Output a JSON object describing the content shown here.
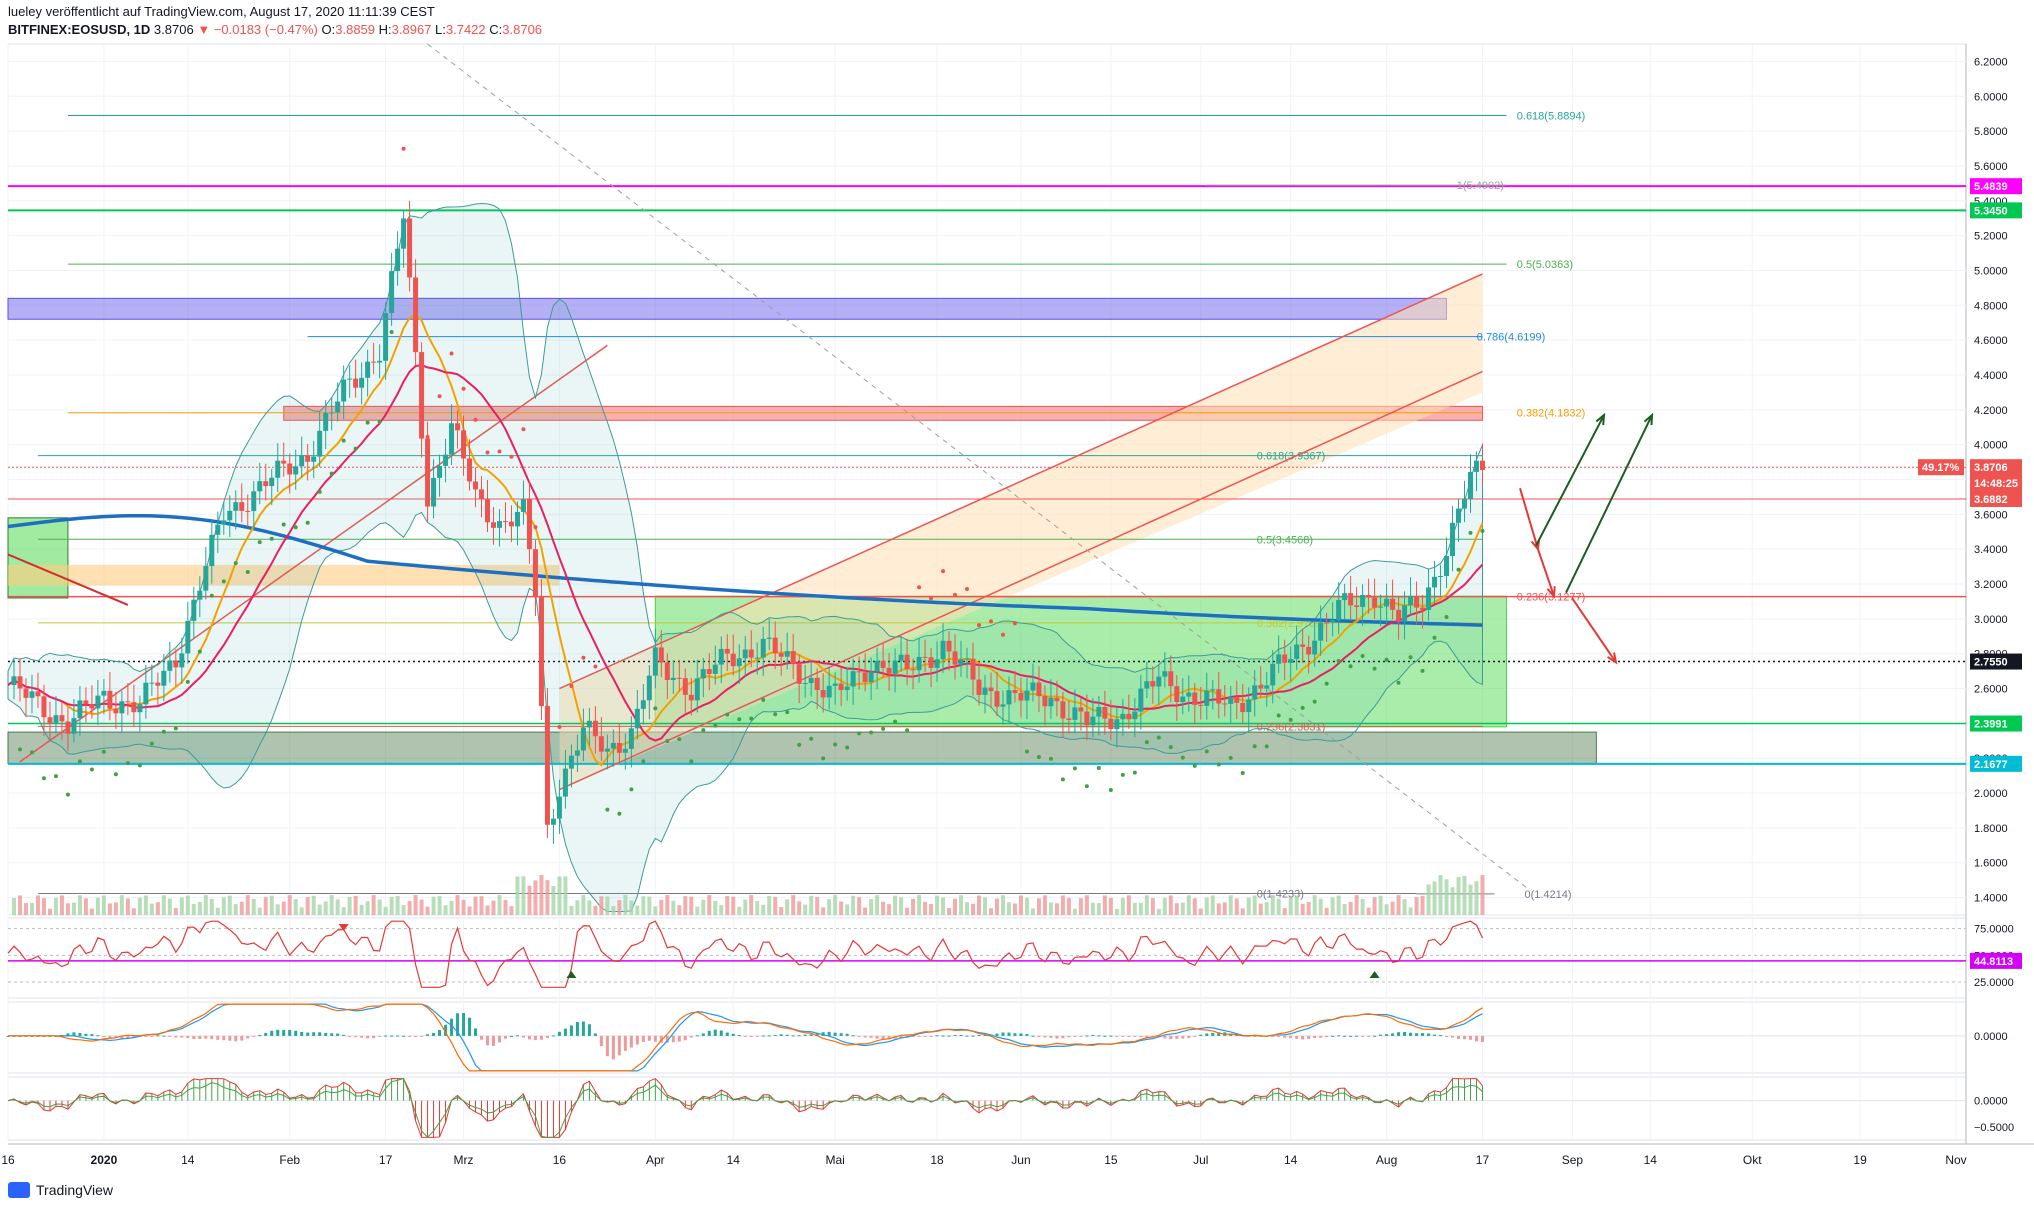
{
  "header": {
    "publisher_line": "lueley veröffentlicht auf TradingView.com, August 17, 2020 11:11:39 CEST",
    "symbol": "BITFINEX:EOSUSD, 1D",
    "last": "3.8706",
    "change": "−0.0183 (−0.47%)",
    "o_label": "O:",
    "o_value": "3.8859",
    "h_label": "H:",
    "h_value": "3.8967",
    "l_label": "L:",
    "l_value": "3.7422",
    "c_label": "C:",
    "c_value": "3.8706"
  },
  "footer": {
    "brand": "TradingView"
  },
  "chart_data": {
    "type": "candlestick",
    "price_axis": {
      "ylim": [
        1.3,
        6.3
      ],
      "ticks": [
        1.4,
        1.6,
        1.8,
        2.0,
        2.2,
        2.4,
        2.6,
        2.8,
        3.0,
        3.2,
        3.4,
        3.6,
        3.8,
        4.0,
        4.2,
        4.4,
        4.6,
        4.8,
        5.0,
        5.2,
        5.4,
        5.6,
        5.8,
        6.0,
        6.2
      ],
      "tick_labels": [
        "1.4000",
        "1.6000",
        "1.8000",
        "2.0000",
        "2.2000",
        "2.4000",
        "2.6000",
        "2.8000",
        "3.0000",
        "3.2000",
        "3.4000",
        "3.6000",
        "3.8000",
        "4.0000",
        "4.2000",
        "4.4000",
        "4.6000",
        "4.8000",
        "5.0000",
        "5.2000",
        "5.4000",
        "5.6000",
        "5.8000",
        "6.0000",
        "6.2000"
      ]
    },
    "time_axis": {
      "labels": [
        "16",
        "2020",
        "14",
        "Feb",
        "17",
        "Mrz",
        "16",
        "Apr",
        "14",
        "Mai",
        "18",
        "Jun",
        "15",
        "Jul",
        "14",
        "Aug",
        "17",
        "Sep",
        "14",
        "Okt",
        "19",
        "Nov"
      ],
      "day_index": [
        0,
        16,
        30,
        47,
        63,
        76,
        92,
        108,
        121,
        138,
        155,
        169,
        184,
        199,
        214,
        230,
        246,
        261,
        274,
        291,
        309,
        325
      ]
    },
    "price_badges": [
      {
        "label": "5.4839",
        "value": 5.4839,
        "color": "#ff00ff"
      },
      {
        "label": "5.3450",
        "value": 5.345,
        "color": "#00c853"
      },
      {
        "label": "49.17%",
        "value": 3.8706,
        "color": "#ef5350"
      },
      {
        "label": "3.8706",
        "value": 3.8706,
        "color": "#ef5350"
      },
      {
        "label": "14:48:25",
        "value": 3.78,
        "color": "#ef5350"
      },
      {
        "label": "3.6882",
        "value": 3.6882,
        "color": "#ef5350"
      },
      {
        "label": "2.7550",
        "value": 2.755,
        "color": "#131722"
      },
      {
        "label": "2.3991",
        "value": 2.3991,
        "color": "#00c853"
      },
      {
        "label": "2.1677",
        "value": 2.1677,
        "color": "#00bcd4"
      }
    ],
    "fib_levels": [
      {
        "label": "0.618(5.8894)",
        "value": 5.8894,
        "color": "#26a69a"
      },
      {
        "label": "1(5.4902)",
        "value": 5.4902,
        "color": "#9e9e9e"
      },
      {
        "label": "0.5(5.0363)",
        "value": 5.0363,
        "color": "#4caf50"
      },
      {
        "label": "0.786(4.6199)",
        "value": 4.6199,
        "color": "#1e88e5"
      },
      {
        "label": "0.382(4.1832)",
        "value": 4.1832,
        "color": "#ff9800"
      },
      {
        "label": "0.618(3.9367)",
        "value": 3.9367,
        "color": "#26a69a"
      },
      {
        "label": "0.5(3.4568)",
        "value": 3.4568,
        "color": "#4caf50"
      },
      {
        "label": "0.236(3.1277)",
        "value": 3.1277,
        "color": "#ef5350"
      },
      {
        "label": "0.382(2.9769)",
        "value": 2.9769,
        "color": "#c0ca33"
      },
      {
        "label": "0.236(2.3831)",
        "value": 2.3831,
        "color": "#ef5350"
      },
      {
        "label": "0(1.4233)",
        "value": 1.4233,
        "color": "#787b86"
      },
      {
        "label": "0(1.4214)",
        "value": 1.4214,
        "color": "#787b86"
      }
    ],
    "zones": [
      {
        "name": "blue-resistance",
        "low": 4.72,
        "high": 4.84,
        "color": "#5c4ee8"
      },
      {
        "name": "red-resistance",
        "low": 4.14,
        "high": 4.22,
        "color": "#ef5350"
      },
      {
        "name": "green-range",
        "low": 2.38,
        "high": 3.13,
        "color": "#43d843"
      },
      {
        "name": "grey-support",
        "low": 2.17,
        "high": 2.35,
        "color": "#4d7a4d"
      }
    ],
    "rsi": {
      "ylim": [
        10,
        85
      ],
      "ticks": [
        25,
        50,
        75
      ],
      "tick_labels": [
        "25.0000",
        "50.0000",
        "75.0000"
      ],
      "badge": "44.8113",
      "badge_value": 44.8113
    },
    "macd": {
      "ylim": [
        -0.35,
        0.32
      ],
      "ticks": [
        0.0
      ],
      "tick_labels": [
        "0.0000"
      ]
    },
    "osc": {
      "ylim": [
        -0.75,
        0.45
      ],
      "ticks": [
        0.0,
        -0.5
      ],
      "tick_labels": [
        "0.0000",
        "−0.5000"
      ]
    },
    "anchors": {
      "days": [
        0,
        10,
        16,
        22,
        28,
        36,
        42,
        50,
        56,
        62,
        66,
        70,
        74,
        78,
        82,
        86,
        88,
        90,
        92,
        96,
        100,
        104,
        108,
        114,
        120,
        126,
        132,
        138,
        144,
        150,
        156,
        162,
        168,
        174,
        180,
        186,
        192,
        198,
        204,
        210,
        216,
        222,
        228,
        232,
        236,
        240,
        244,
        246
      ],
      "close": [
        2.62,
        2.4,
        2.55,
        2.5,
        2.78,
        3.6,
        3.75,
        3.95,
        4.3,
        4.55,
        5.3,
        3.7,
        4.1,
        3.7,
        3.55,
        3.6,
        3.15,
        1.8,
        2.05,
        2.35,
        2.25,
        2.35,
        2.75,
        2.6,
        2.78,
        2.85,
        2.7,
        2.55,
        2.75,
        2.7,
        2.85,
        2.6,
        2.55,
        2.55,
        2.4,
        2.45,
        2.65,
        2.55,
        2.5,
        2.65,
        2.85,
        3.05,
        3.15,
        3.0,
        3.1,
        3.4,
        3.8,
        3.87
      ]
    }
  }
}
